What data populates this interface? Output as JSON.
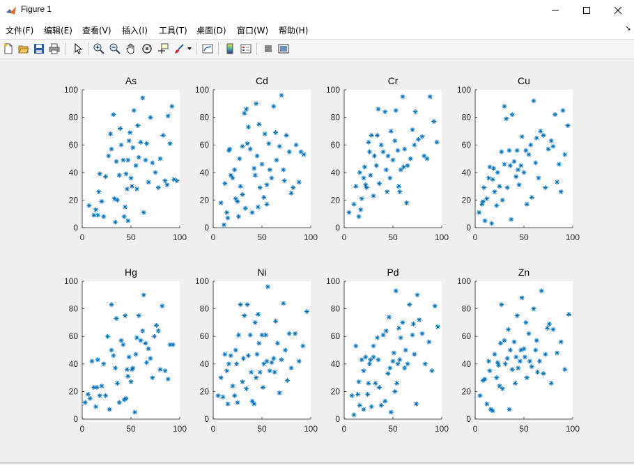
{
  "window": {
    "title": "Figure 1",
    "minimize_glyph": "—",
    "maximize_glyph": "☐",
    "close_glyph": "✕"
  },
  "menubar": {
    "items": [
      {
        "label": "文件(F)"
      },
      {
        "label": "编辑(E)"
      },
      {
        "label": "查看(V)"
      },
      {
        "label": "插入(I)"
      },
      {
        "label": "工具(T)"
      },
      {
        "label": "桌面(D)"
      },
      {
        "label": "窗口(W)"
      },
      {
        "label": "帮助(H)"
      }
    ],
    "dock_arrow": "➘"
  },
  "toolbar": {
    "icons": [
      "new-figure-icon",
      "open-file-icon",
      "save-icon",
      "print-icon",
      "pointer-icon",
      "zoom-in-icon",
      "zoom-out-icon",
      "pan-hand-icon",
      "rotate-3d-icon",
      "data-cursor-icon",
      "brush-icon",
      "link-plot-icon",
      "insert-colorbar-icon",
      "insert-legend-icon",
      "hide-plot-tools-icon",
      "show-plot-tools-icon"
    ]
  },
  "colors": {
    "marker": "#0072bd",
    "axes_bg": "#ffffff",
    "figure_bg": "#f0f0f0"
  },
  "chart_data": [
    {
      "type": "scatter",
      "title": "As",
      "marker": "*",
      "xlim": [
        0,
        100
      ],
      "ylim": [
        0,
        100
      ],
      "xticks": [
        "0",
        "50",
        "100"
      ],
      "yticks": [
        "0",
        "20",
        "40",
        "60",
        "80",
        "100"
      ],
      "x": [
        7,
        12,
        14,
        16,
        17,
        20,
        22,
        18,
        24,
        27,
        29,
        30,
        32,
        33,
        34,
        35,
        36,
        38,
        39,
        40,
        42,
        43,
        44,
        45,
        46,
        47,
        47,
        48,
        49,
        50,
        51,
        52,
        53,
        55,
        56,
        57,
        58,
        60,
        62,
        63,
        65,
        66,
        68,
        70,
        72,
        75,
        78,
        80,
        83,
        85,
        87,
        88,
        90,
        92,
        94,
        97
      ],
      "y": [
        16,
        9,
        13,
        9,
        26,
        19,
        8,
        39,
        37,
        52,
        68,
        57,
        82,
        21,
        4,
        48,
        20,
        38,
        72,
        60,
        49,
        8,
        15,
        39,
        28,
        49,
        5,
        63,
        69,
        36,
        30,
        58,
        85,
        45,
        28,
        74,
        51,
        62,
        94,
        11,
        49,
        61,
        33,
        80,
        47,
        40,
        29,
        50,
        67,
        34,
        31,
        81,
        61,
        88,
        35,
        34
      ]
    },
    {
      "type": "scatter",
      "title": "Cd",
      "marker": "*",
      "xlim": [
        0,
        100
      ],
      "ylim": [
        0,
        100
      ],
      "xticks": [
        "0",
        "50",
        "100"
      ],
      "yticks": [
        "0",
        "20",
        "40",
        "60",
        "80",
        "100"
      ],
      "x": [
        8,
        11,
        12,
        14,
        15,
        16,
        17,
        18,
        20,
        22,
        23,
        25,
        26,
        27,
        28,
        30,
        30,
        32,
        33,
        34,
        35,
        36,
        38,
        40,
        42,
        43,
        44,
        45,
        46,
        47,
        48,
        50,
        52,
        53,
        55,
        55,
        57,
        58,
        60,
        62,
        64,
        65,
        68,
        70,
        72,
        73,
        75,
        78,
        80,
        82,
        85,
        88,
        90,
        93
      ],
      "y": [
        18,
        2,
        32,
        11,
        7,
        56,
        57,
        38,
        36,
        42,
        21,
        19,
        8,
        50,
        30,
        59,
        24,
        83,
        14,
        86,
        61,
        73,
        57,
        11,
        43,
        38,
        90,
        52,
        15,
        75,
        29,
        46,
        22,
        68,
        31,
        17,
        61,
        42,
        36,
        88,
        69,
        49,
        59,
        96,
        42,
        34,
        67,
        55,
        25,
        29,
        60,
        33,
        55,
        53
      ]
    },
    {
      "type": "scatter",
      "title": "Cr",
      "marker": "*",
      "xlim": [
        0,
        100
      ],
      "ylim": [
        0,
        100
      ],
      "xticks": [
        "0",
        "50",
        "100"
      ],
      "yticks": [
        "0",
        "20",
        "40",
        "60",
        "80",
        "100"
      ],
      "x": [
        5,
        10,
        12,
        15,
        16,
        17,
        18,
        20,
        21,
        22,
        23,
        25,
        26,
        27,
        28,
        30,
        31,
        33,
        34,
        35,
        36,
        38,
        40,
        42,
        43,
        44,
        45,
        47,
        48,
        50,
        52,
        53,
        55,
        56,
        57,
        58,
        60,
        61,
        62,
        64,
        65,
        68,
        70,
        72,
        73,
        76,
        80,
        82,
        85,
        88,
        92,
        95
      ],
      "y": [
        11,
        17,
        30,
        8,
        40,
        13,
        21,
        36,
        44,
        31,
        29,
        62,
        55,
        38,
        67,
        23,
        52,
        45,
        67,
        86,
        32,
        60,
        55,
        84,
        42,
        26,
        52,
        36,
        70,
        49,
        63,
        85,
        56,
        30,
        26,
        42,
        95,
        44,
        57,
        18,
        45,
        50,
        71,
        60,
        84,
        64,
        66,
        52,
        50,
        95,
        77,
        62
      ]
    },
    {
      "type": "scatter",
      "title": "Cu",
      "marker": "*",
      "xlim": [
        0,
        100
      ],
      "ylim": [
        0,
        100
      ],
      "xticks": [
        "0",
        "50",
        "100"
      ],
      "yticks": [
        "0",
        "20",
        "40",
        "60",
        "80",
        "100"
      ],
      "x": [
        4,
        7,
        8,
        9,
        10,
        12,
        14,
        15,
        17,
        18,
        19,
        20,
        22,
        23,
        25,
        27,
        28,
        30,
        30,
        32,
        33,
        35,
        36,
        37,
        38,
        40,
        42,
        43,
        44,
        45,
        47,
        48,
        50,
        52,
        53,
        55,
        57,
        58,
        60,
        62,
        63,
        65,
        67,
        70,
        72,
        75,
        78,
        80,
        82,
        84,
        86,
        88,
        90,
        92,
        95
      ],
      "y": [
        11,
        17,
        19,
        29,
        5,
        21,
        36,
        44,
        3,
        35,
        43,
        26,
        16,
        40,
        30,
        55,
        20,
        46,
        88,
        79,
        29,
        56,
        45,
        6,
        82,
        48,
        37,
        56,
        42,
        31,
        45,
        66,
        40,
        56,
        17,
        53,
        60,
        22,
        92,
        47,
        65,
        36,
        70,
        67,
        29,
        57,
        63,
        59,
        82,
        33,
        46,
        26,
        85,
        53,
        74
      ]
    },
    {
      "type": "scatter",
      "title": "Hg",
      "marker": "*",
      "xlim": [
        0,
        100
      ],
      "ylim": [
        0,
        100
      ],
      "xticks": [
        "0",
        "50",
        "100"
      ],
      "yticks": [
        "0",
        "20",
        "40",
        "60",
        "80",
        "100"
      ],
      "x": [
        3,
        6,
        8,
        10,
        12,
        14,
        15,
        16,
        18,
        20,
        22,
        24,
        26,
        28,
        30,
        30,
        32,
        34,
        35,
        36,
        38,
        40,
        42,
        43,
        44,
        45,
        46,
        47,
        48,
        50,
        51,
        52,
        54,
        55,
        56,
        58,
        60,
        62,
        63,
        65,
        66,
        68,
        70,
        72,
        74,
        76,
        78,
        80,
        82,
        85,
        88,
        90,
        93
      ],
      "y": [
        12,
        18,
        15,
        42,
        23,
        9,
        23,
        43,
        17,
        24,
        40,
        17,
        60,
        7,
        83,
        50,
        46,
        37,
        73,
        26,
        12,
        57,
        54,
        14,
        75,
        15,
        36,
        31,
        45,
        27,
        36,
        37,
        5,
        47,
        59,
        75,
        57,
        64,
        90,
        55,
        41,
        51,
        44,
        30,
        60,
        68,
        64,
        36,
        82,
        35,
        29,
        54,
        54
      ]
    },
    {
      "type": "scatter",
      "title": "Ni",
      "marker": "*",
      "xlim": [
        0,
        100
      ],
      "ylim": [
        0,
        100
      ],
      "xticks": [
        "0",
        "50",
        "100"
      ],
      "yticks": [
        "0",
        "20",
        "40",
        "60",
        "80",
        "100"
      ],
      "x": [
        5,
        8,
        10,
        12,
        14,
        15,
        16,
        18,
        20,
        22,
        23,
        24,
        25,
        26,
        28,
        30,
        31,
        32,
        34,
        35,
        36,
        38,
        39,
        40,
        42,
        43,
        44,
        45,
        46,
        47,
        48,
        50,
        51,
        52,
        54,
        55,
        56,
        58,
        60,
        62,
        63,
        64,
        66,
        68,
        70,
        72,
        74,
        76,
        78,
        80,
        84,
        88,
        92,
        96
      ],
      "y": [
        17,
        30,
        16,
        47,
        35,
        11,
        40,
        46,
        24,
        17,
        50,
        40,
        12,
        61,
        83,
        27,
        44,
        75,
        22,
        83,
        46,
        61,
        34,
        13,
        11,
        70,
        30,
        47,
        76,
        55,
        34,
        61,
        23,
        40,
        61,
        42,
        96,
        35,
        41,
        44,
        34,
        71,
        55,
        19,
        43,
        84,
        50,
        28,
        62,
        37,
        62,
        42,
        53,
        78
      ]
    },
    {
      "type": "scatter",
      "title": "Pd",
      "marker": "*",
      "xlim": [
        0,
        100
      ],
      "ylim": [
        0,
        100
      ],
      "xticks": [
        "0",
        "50",
        "100"
      ],
      "yticks": [
        "0",
        "20",
        "40",
        "60",
        "80",
        "100"
      ],
      "x": [
        8,
        10,
        12,
        14,
        15,
        16,
        18,
        20,
        20,
        22,
        24,
        25,
        26,
        27,
        28,
        30,
        30,
        32,
        34,
        35,
        36,
        38,
        40,
        42,
        43,
        45,
        46,
        47,
        48,
        50,
        51,
        52,
        53,
        54,
        55,
        56,
        57,
        58,
        60,
        62,
        63,
        65,
        67,
        70,
        71,
        72,
        74,
        75,
        77,
        80,
        83,
        87,
        90,
        93,
        96
      ],
      "y": [
        17,
        3,
        53,
        18,
        27,
        10,
        43,
        7,
        35,
        45,
        18,
        26,
        40,
        43,
        9,
        53,
        45,
        26,
        59,
        43,
        23,
        10,
        61,
        13,
        64,
        33,
        74,
        37,
        5,
        42,
        48,
        20,
        93,
        26,
        40,
        66,
        43,
        59,
        70,
        37,
        50,
        40,
        83,
        61,
        69,
        47,
        11,
        90,
        72,
        62,
        40,
        56,
        35,
        82,
        67
      ]
    },
    {
      "type": "scatter",
      "title": "Zn",
      "marker": "*",
      "xlim": [
        0,
        100
      ],
      "ylim": [
        0,
        100
      ],
      "xticks": [
        "0",
        "50",
        "100"
      ],
      "yticks": [
        "0",
        "20",
        "40",
        "60",
        "80",
        "100"
      ],
      "x": [
        5,
        8,
        10,
        12,
        14,
        15,
        16,
        18,
        20,
        22,
        23,
        24,
        25,
        26,
        27,
        28,
        30,
        31,
        33,
        34,
        35,
        36,
        38,
        40,
        41,
        42,
        43,
        44,
        46,
        47,
        48,
        50,
        51,
        52,
        53,
        55,
        56,
        58,
        60,
        62,
        63,
        64,
        66,
        68,
        70,
        72,
        74,
        76,
        78,
        80,
        84,
        88,
        92,
        96
      ],
      "y": [
        17,
        28,
        29,
        11,
        42,
        35,
        7,
        6,
        47,
        30,
        41,
        39,
        24,
        55,
        83,
        22,
        57,
        40,
        44,
        65,
        7,
        50,
        36,
        56,
        26,
        45,
        75,
        37,
        42,
        50,
        88,
        51,
        45,
        70,
        30,
        62,
        42,
        38,
        80,
        50,
        57,
        34,
        42,
        93,
        33,
        47,
        66,
        69,
        26,
        65,
        48,
        56,
        36,
        76
      ]
    }
  ]
}
